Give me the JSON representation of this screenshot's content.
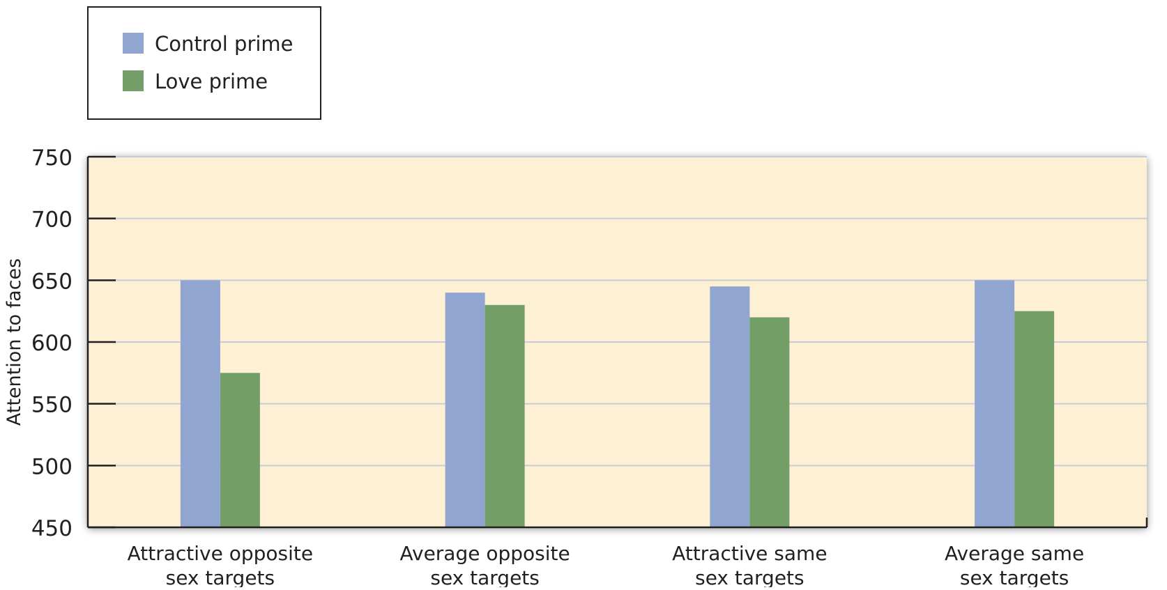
{
  "chart_data": {
    "type": "bar",
    "title": "",
    "xlabel": "",
    "ylabel": "Attention to faces",
    "ylim": [
      450,
      750
    ],
    "yticks": [
      450,
      500,
      550,
      600,
      650,
      700,
      750
    ],
    "grid": true,
    "legend_placement": "top-left, outside plot",
    "plot_background": "#fdf0d5",
    "categories": [
      [
        "Attractive opposite",
        "sex targets"
      ],
      [
        "Average opposite",
        "sex targets"
      ],
      [
        "Attractive same",
        "sex targets"
      ],
      [
        "Average same",
        "sex targets"
      ]
    ],
    "series": [
      {
        "name": "Control prime",
        "color": "#90a5cf",
        "values": [
          650,
          640,
          645,
          650
        ]
      },
      {
        "name": "Love prime",
        "color": "#749e67",
        "values": [
          575,
          630,
          620,
          625
        ]
      }
    ]
  }
}
